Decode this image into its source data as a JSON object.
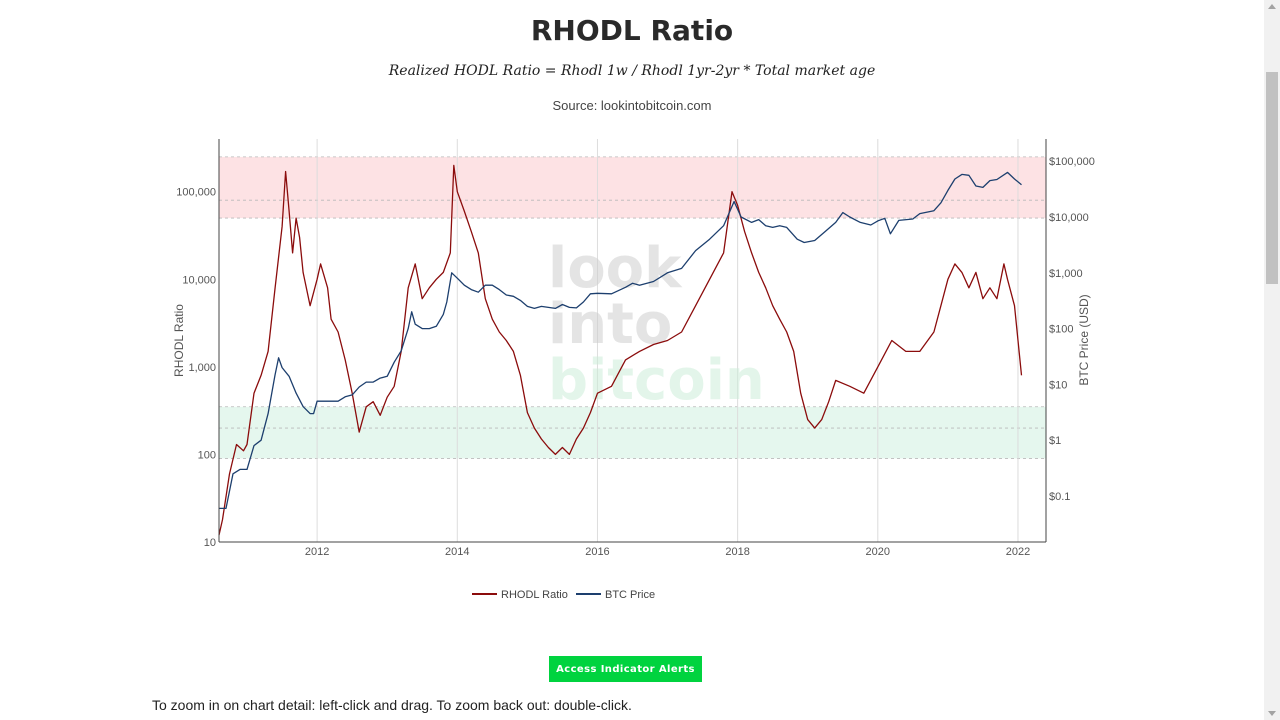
{
  "page": {
    "title": "RHODL Ratio",
    "formula": "Realized HODL Ratio = Rhodl 1w / Rhodl 1yr-2yr * Total market age",
    "source": "Source: lookintobitcoin.com",
    "alert_button": "Access Indicator Alerts",
    "instructions": "To zoom in on chart detail: left-click and drag. To zoom back out: double-click."
  },
  "watermark": [
    "look",
    "into",
    "bitcoin"
  ],
  "colors": {
    "rhodl": "#8b0c0c",
    "btc": "#1d3f6e",
    "red_band": "#fde2e4",
    "green_band": "#e5f7ee",
    "button": "#00d33f"
  },
  "chart_data": {
    "type": "line",
    "x_range": [
      2010.6,
      2022.4
    ],
    "x_ticks": [
      {
        "v": 2012,
        "label": "2012"
      },
      {
        "v": 2014,
        "label": "2014"
      },
      {
        "v": 2016,
        "label": "2016"
      },
      {
        "v": 2018,
        "label": "2018"
      },
      {
        "v": 2020,
        "label": "2020"
      },
      {
        "v": 2022,
        "label": "2022"
      }
    ],
    "y_left": {
      "title": "RHODL Ratio",
      "scale": "log",
      "range": [
        10,
        400000
      ],
      "ticks": [
        {
          "v": 10,
          "label": "10"
        },
        {
          "v": 100,
          "label": "100"
        },
        {
          "v": 1000,
          "label": "1,000"
        },
        {
          "v": 10000,
          "label": "10,000"
        },
        {
          "v": 100000,
          "label": "100,000"
        }
      ]
    },
    "y_right": {
      "title": "BTC Price (USD)",
      "scale": "log",
      "range": [
        0.015,
        250000
      ],
      "ticks": [
        {
          "v": 0.1,
          "label": "$0.1"
        },
        {
          "v": 1,
          "label": "$1"
        },
        {
          "v": 10,
          "label": "$10"
        },
        {
          "v": 100,
          "label": "$100"
        },
        {
          "v": 1000,
          "label": "$1,000"
        },
        {
          "v": 10000,
          "label": "$10,000"
        },
        {
          "v": 100000,
          "label": "$100,000"
        }
      ]
    },
    "bands": [
      {
        "name": "red",
        "from": 50000,
        "to": 250000,
        "lines": [
          50000,
          80000,
          250000
        ]
      },
      {
        "name": "green",
        "from": 90,
        "to": 350,
        "lines": [
          90,
          200,
          350
        ]
      }
    ],
    "legend": {
      "position": "bottom-center"
    },
    "series": [
      {
        "name": "RHODL Ratio",
        "axis": "left",
        "points": [
          [
            2010.6,
            12
          ],
          [
            2010.65,
            18
          ],
          [
            2010.75,
            60
          ],
          [
            2010.85,
            130
          ],
          [
            2010.95,
            110
          ],
          [
            2011.0,
            130
          ],
          [
            2011.1,
            500
          ],
          [
            2011.2,
            800
          ],
          [
            2011.3,
            1500
          ],
          [
            2011.4,
            8000
          ],
          [
            2011.5,
            40000
          ],
          [
            2011.55,
            170000
          ],
          [
            2011.6,
            60000
          ],
          [
            2011.65,
            20000
          ],
          [
            2011.7,
            50000
          ],
          [
            2011.75,
            30000
          ],
          [
            2011.8,
            12000
          ],
          [
            2011.9,
            5000
          ],
          [
            2012.0,
            10000
          ],
          [
            2012.05,
            15000
          ],
          [
            2012.15,
            8000
          ],
          [
            2012.2,
            3500
          ],
          [
            2012.3,
            2500
          ],
          [
            2012.4,
            1200
          ],
          [
            2012.5,
            500
          ],
          [
            2012.6,
            180
          ],
          [
            2012.7,
            350
          ],
          [
            2012.8,
            400
          ],
          [
            2012.9,
            280
          ],
          [
            2013.0,
            450
          ],
          [
            2013.1,
            600
          ],
          [
            2013.2,
            1500
          ],
          [
            2013.3,
            8000
          ],
          [
            2013.4,
            15000
          ],
          [
            2013.5,
            6000
          ],
          [
            2013.6,
            8000
          ],
          [
            2013.7,
            10000
          ],
          [
            2013.8,
            12000
          ],
          [
            2013.9,
            20000
          ],
          [
            2013.95,
            200000
          ],
          [
            2014.0,
            100000
          ],
          [
            2014.1,
            60000
          ],
          [
            2014.2,
            35000
          ],
          [
            2014.3,
            20000
          ],
          [
            2014.4,
            6000
          ],
          [
            2014.5,
            3500
          ],
          [
            2014.6,
            2500
          ],
          [
            2014.7,
            2000
          ],
          [
            2014.8,
            1500
          ],
          [
            2014.9,
            800
          ],
          [
            2015.0,
            300
          ],
          [
            2015.1,
            200
          ],
          [
            2015.2,
            150
          ],
          [
            2015.3,
            120
          ],
          [
            2015.4,
            100
          ],
          [
            2015.5,
            120
          ],
          [
            2015.6,
            100
          ],
          [
            2015.7,
            150
          ],
          [
            2015.8,
            200
          ],
          [
            2015.9,
            300
          ],
          [
            2016.0,
            500
          ],
          [
            2016.2,
            600
          ],
          [
            2016.4,
            1200
          ],
          [
            2016.6,
            1500
          ],
          [
            2016.8,
            1800
          ],
          [
            2017.0,
            2000
          ],
          [
            2017.2,
            2500
          ],
          [
            2017.4,
            5000
          ],
          [
            2017.6,
            10000
          ],
          [
            2017.8,
            20000
          ],
          [
            2017.92,
            100000
          ],
          [
            2018.0,
            70000
          ],
          [
            2018.1,
            35000
          ],
          [
            2018.2,
            20000
          ],
          [
            2018.3,
            12000
          ],
          [
            2018.4,
            8000
          ],
          [
            2018.5,
            5000
          ],
          [
            2018.6,
            3500
          ],
          [
            2018.7,
            2500
          ],
          [
            2018.8,
            1500
          ],
          [
            2018.9,
            500
          ],
          [
            2019.0,
            250
          ],
          [
            2019.1,
            200
          ],
          [
            2019.2,
            250
          ],
          [
            2019.3,
            400
          ],
          [
            2019.4,
            700
          ],
          [
            2019.6,
            600
          ],
          [
            2019.8,
            500
          ],
          [
            2020.0,
            1000
          ],
          [
            2020.2,
            2000
          ],
          [
            2020.4,
            1500
          ],
          [
            2020.6,
            1500
          ],
          [
            2020.8,
            2500
          ],
          [
            2020.9,
            5000
          ],
          [
            2021.0,
            10000
          ],
          [
            2021.1,
            15000
          ],
          [
            2021.2,
            12000
          ],
          [
            2021.3,
            8000
          ],
          [
            2021.4,
            12000
          ],
          [
            2021.5,
            6000
          ],
          [
            2021.6,
            8000
          ],
          [
            2021.7,
            6000
          ],
          [
            2021.8,
            15000
          ],
          [
            2021.85,
            10000
          ],
          [
            2021.95,
            5000
          ],
          [
            2022.05,
            800
          ]
        ]
      },
      {
        "name": "BTC Price",
        "axis": "right",
        "points": [
          [
            2010.6,
            0.06
          ],
          [
            2010.7,
            0.06
          ],
          [
            2010.8,
            0.25
          ],
          [
            2010.9,
            0.3
          ],
          [
            2011.0,
            0.3
          ],
          [
            2011.1,
            0.8
          ],
          [
            2011.2,
            1
          ],
          [
            2011.3,
            3
          ],
          [
            2011.4,
            15
          ],
          [
            2011.45,
            30
          ],
          [
            2011.5,
            20
          ],
          [
            2011.6,
            14
          ],
          [
            2011.7,
            7
          ],
          [
            2011.8,
            4
          ],
          [
            2011.9,
            3
          ],
          [
            2011.95,
            3
          ],
          [
            2012.0,
            5
          ],
          [
            2012.1,
            5
          ],
          [
            2012.2,
            5
          ],
          [
            2012.3,
            5
          ],
          [
            2012.4,
            6
          ],
          [
            2012.5,
            6.5
          ],
          [
            2012.6,
            9
          ],
          [
            2012.7,
            11
          ],
          [
            2012.8,
            11
          ],
          [
            2012.9,
            13
          ],
          [
            2013.0,
            14
          ],
          [
            2013.1,
            25
          ],
          [
            2013.2,
            40
          ],
          [
            2013.3,
            100
          ],
          [
            2013.35,
            200
          ],
          [
            2013.4,
            120
          ],
          [
            2013.5,
            100
          ],
          [
            2013.6,
            100
          ],
          [
            2013.7,
            110
          ],
          [
            2013.8,
            180
          ],
          [
            2013.85,
            300
          ],
          [
            2013.92,
            1000
          ],
          [
            2014.0,
            800
          ],
          [
            2014.1,
            600
          ],
          [
            2014.2,
            500
          ],
          [
            2014.3,
            450
          ],
          [
            2014.4,
            600
          ],
          [
            2014.5,
            600
          ],
          [
            2014.6,
            500
          ],
          [
            2014.7,
            400
          ],
          [
            2014.8,
            380
          ],
          [
            2014.9,
            320
          ],
          [
            2015.0,
            250
          ],
          [
            2015.1,
            230
          ],
          [
            2015.2,
            250
          ],
          [
            2015.3,
            240
          ],
          [
            2015.4,
            230
          ],
          [
            2015.5,
            270
          ],
          [
            2015.6,
            240
          ],
          [
            2015.7,
            235
          ],
          [
            2015.8,
            300
          ],
          [
            2015.9,
            420
          ],
          [
            2016.0,
            430
          ],
          [
            2016.2,
            420
          ],
          [
            2016.4,
            550
          ],
          [
            2016.5,
            650
          ],
          [
            2016.6,
            600
          ],
          [
            2016.8,
            700
          ],
          [
            2017.0,
            1000
          ],
          [
            2017.2,
            1200
          ],
          [
            2017.4,
            2500
          ],
          [
            2017.6,
            4000
          ],
          [
            2017.8,
            7000
          ],
          [
            2017.95,
            19000
          ],
          [
            2018.05,
            10000
          ],
          [
            2018.2,
            8000
          ],
          [
            2018.3,
            9000
          ],
          [
            2018.4,
            7000
          ],
          [
            2018.5,
            6500
          ],
          [
            2018.6,
            7000
          ],
          [
            2018.7,
            6500
          ],
          [
            2018.85,
            4000
          ],
          [
            2018.95,
            3500
          ],
          [
            2019.1,
            3800
          ],
          [
            2019.25,
            5500
          ],
          [
            2019.4,
            8000
          ],
          [
            2019.5,
            12000
          ],
          [
            2019.6,
            10000
          ],
          [
            2019.75,
            8000
          ],
          [
            2019.9,
            7200
          ],
          [
            2020.0,
            8500
          ],
          [
            2020.1,
            9500
          ],
          [
            2020.18,
            5000
          ],
          [
            2020.3,
            8700
          ],
          [
            2020.5,
            9200
          ],
          [
            2020.6,
            11500
          ],
          [
            2020.8,
            13000
          ],
          [
            2020.9,
            18000
          ],
          [
            2021.0,
            30000
          ],
          [
            2021.1,
            48000
          ],
          [
            2021.2,
            58000
          ],
          [
            2021.3,
            56000
          ],
          [
            2021.4,
            36000
          ],
          [
            2021.5,
            34000
          ],
          [
            2021.6,
            45000
          ],
          [
            2021.7,
            47000
          ],
          [
            2021.85,
            63000
          ],
          [
            2021.95,
            48000
          ],
          [
            2022.05,
            38000
          ]
        ]
      }
    ]
  }
}
